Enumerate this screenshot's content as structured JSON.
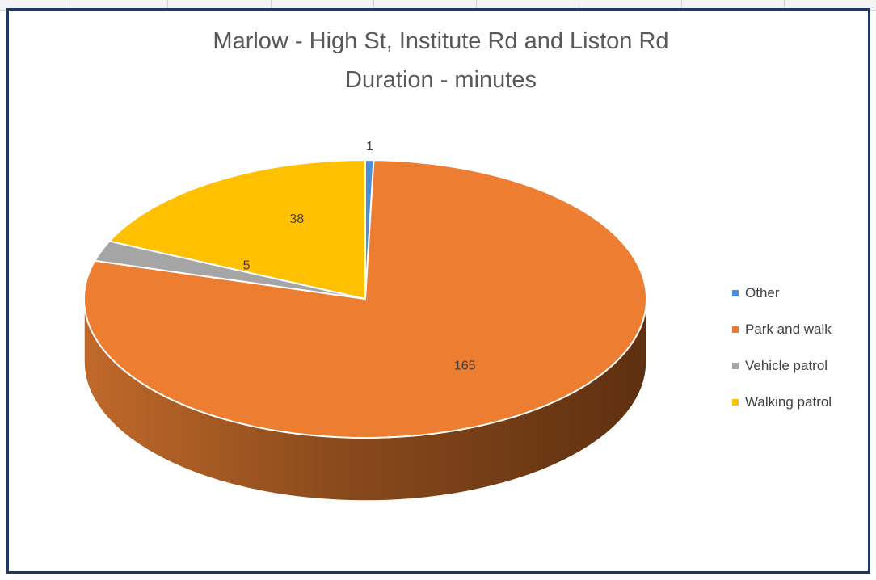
{
  "chart_data": {
    "type": "pie",
    "title": "Marlow - High St, Institute Rd and Liston Rd",
    "subtitle": "Duration - minutes",
    "categories": [
      "Other",
      "Park and walk",
      "Vehicle patrol",
      "Walking patrol"
    ],
    "values": [
      1,
      165,
      5,
      38
    ],
    "colors": [
      "#4a90d9",
      "#ed7d31",
      "#a5a5a5",
      "#ffc000"
    ],
    "legend_placement": "right",
    "data_labels": true,
    "style": "3d-pie"
  }
}
